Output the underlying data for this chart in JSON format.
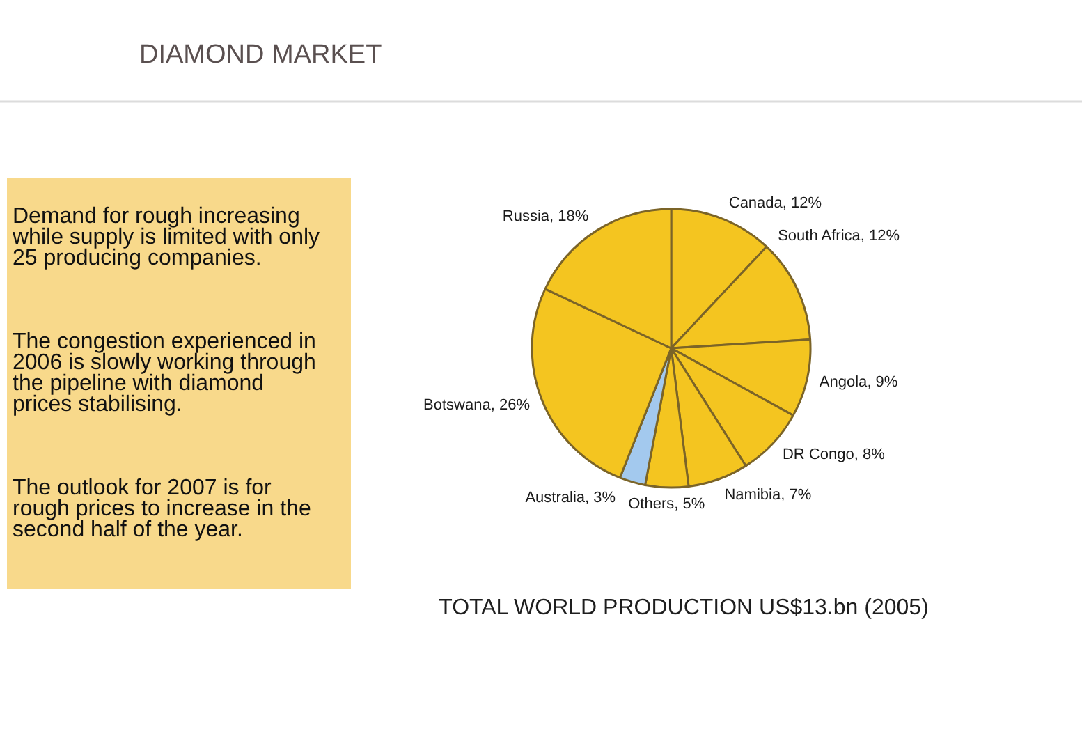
{
  "chart_data": {
    "type": "pie",
    "title": "DIAMOND MARKET",
    "subtitle": "TOTAL WORLD PRODUCTION US$13.bn (2005)",
    "categories": [
      "Canada",
      "South Africa",
      "Angola",
      "DR Congo",
      "Namibia",
      "Others",
      "Australia",
      "Botswana",
      "Russia"
    ],
    "values": [
      12,
      12,
      9,
      8,
      7,
      5,
      3,
      26,
      18
    ],
    "colors": [
      "#f4c520",
      "#f4c520",
      "#f4c520",
      "#f4c520",
      "#f4c520",
      "#f4c520",
      "#a3c9ee",
      "#f4c520",
      "#f4c520"
    ],
    "value_labels": [
      ", 12%",
      ", 12%",
      ", 9%",
      ", 8%",
      ", 7%",
      ", 5%",
      ", 3%",
      ", 26%",
      ", 18%"
    ],
    "annotations": [
      "Demand for rough increasing while supply is limited with only 25 producing companies.",
      "The congestion experienced in 2006 is slowly working through the pipeline with diamond prices stabilising.",
      "The outlook for 2007 is for rough prices to increase in the second half of the year."
    ]
  }
}
